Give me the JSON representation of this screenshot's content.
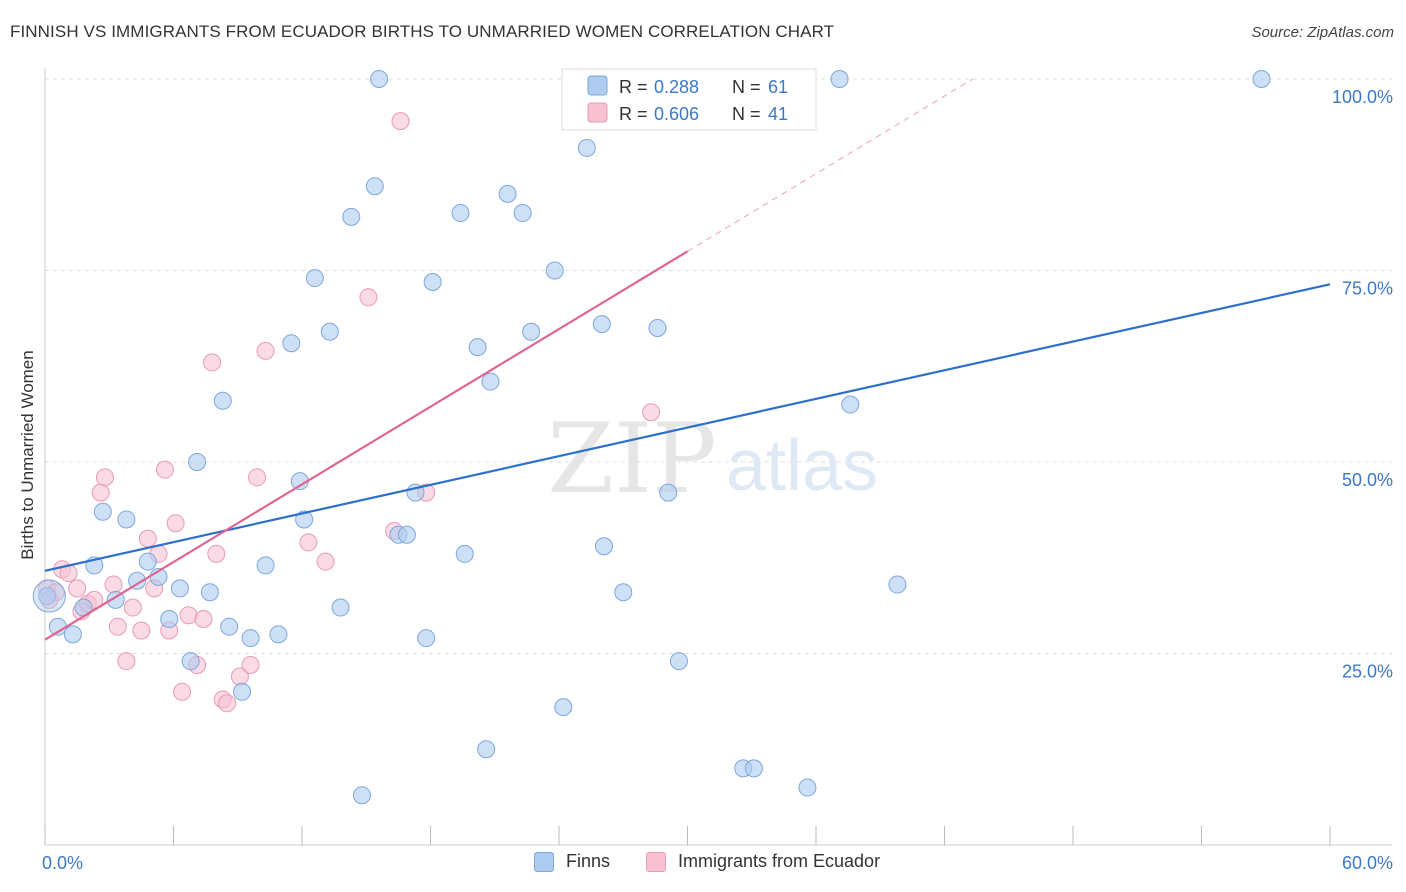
{
  "title": "FINNISH VS IMMIGRANTS FROM ECUADOR BIRTHS TO UNMARRIED WOMEN CORRELATION CHART",
  "source": "Source: ZipAtlas.com",
  "watermark": {
    "zip": "ZIP",
    "atlas": "atlas"
  },
  "colors": {
    "finns_fill": "#aecbf0",
    "finns_stroke": "#7ea6dd",
    "finns_line": "#2d6fcd",
    "ecuador_fill": "#f7c1d2",
    "ecuador_stroke": "#e99ab4",
    "ecuador_line": "#e0648f",
    "axis_label": "#3b78c8",
    "grid": "#dddddd"
  },
  "legend_top": {
    "finns": {
      "r_label": "R = ",
      "r_value": "0.288",
      "n_label": "N = ",
      "n_value": "61"
    },
    "ecuador": {
      "r_label": "R = ",
      "r_value": "0.606",
      "n_label": "N = ",
      "n_value": "41"
    }
  },
  "legend_bottom": {
    "finns": "Finns",
    "ecuador": "Immigrants from Ecuador"
  },
  "chart_data": {
    "type": "scatter",
    "title": "FINNISH VS IMMIGRANTS FROM ECUADOR BIRTHS TO UNMARRIED WOMEN CORRELATION CHART",
    "xlabel": "",
    "ylabel": "Births to Unmarried Women",
    "xlim": [
      0,
      60
    ],
    "ylim": [
      0,
      100
    ],
    "x_tick_labels": [
      "0.0%",
      "60.0%"
    ],
    "y_tick_labels": [
      "25.0%",
      "50.0%",
      "75.0%",
      "100.0%"
    ],
    "y_ticks": [
      25,
      50,
      75,
      100
    ],
    "grid": "horizontal dashed",
    "legend": "top-center",
    "series": [
      {
        "name": "Finns",
        "color": "#aecbf0",
        "points": [
          [
            0.1,
            32.5
          ],
          [
            0.6,
            28.5
          ],
          [
            1.3,
            27.5
          ],
          [
            1.8,
            31.0
          ],
          [
            2.3,
            36.5
          ],
          [
            2.7,
            43.5
          ],
          [
            3.3,
            32.0
          ],
          [
            3.8,
            42.5
          ],
          [
            4.3,
            34.5
          ],
          [
            4.8,
            37.0
          ],
          [
            5.3,
            35.0
          ],
          [
            5.8,
            29.5
          ],
          [
            6.3,
            33.5
          ],
          [
            6.8,
            24.0
          ],
          [
            7.1,
            50.0
          ],
          [
            7.7,
            33.0
          ],
          [
            8.3,
            58.0
          ],
          [
            8.6,
            28.5
          ],
          [
            9.2,
            20.0
          ],
          [
            9.6,
            27.0
          ],
          [
            10.3,
            36.5
          ],
          [
            10.9,
            27.5
          ],
          [
            11.5,
            65.5
          ],
          [
            11.9,
            47.5
          ],
          [
            12.1,
            42.5
          ],
          [
            12.6,
            74.0
          ],
          [
            13.3,
            67.0
          ],
          [
            13.8,
            31.0
          ],
          [
            14.3,
            82.0
          ],
          [
            14.8,
            6.5
          ],
          [
            15.4,
            86.0
          ],
          [
            15.6,
            100.0
          ],
          [
            16.5,
            40.5
          ],
          [
            16.9,
            40.5
          ],
          [
            17.3,
            46.0
          ],
          [
            17.8,
            27.0
          ],
          [
            18.1,
            73.5
          ],
          [
            19.4,
            82.5
          ],
          [
            19.6,
            38.0
          ],
          [
            20.2,
            65.0
          ],
          [
            20.6,
            12.5
          ],
          [
            20.8,
            60.5
          ],
          [
            21.6,
            85.0
          ],
          [
            22.3,
            82.5
          ],
          [
            22.7,
            67.0
          ],
          [
            23.8,
            75.0
          ],
          [
            24.2,
            18.0
          ],
          [
            25.3,
            91.0
          ],
          [
            26.0,
            68.0
          ],
          [
            26.1,
            39.0
          ],
          [
            27.0,
            33.0
          ],
          [
            28.6,
            67.5
          ],
          [
            29.1,
            46.0
          ],
          [
            29.6,
            24.0
          ],
          [
            32.6,
            10.0
          ],
          [
            33.1,
            10.0
          ],
          [
            35.6,
            7.5
          ],
          [
            37.1,
            100.0
          ],
          [
            37.6,
            57.5
          ],
          [
            39.8,
            34.0
          ],
          [
            56.8,
            100.0
          ]
        ]
      },
      {
        "name": "Immigrants from Ecuador",
        "color": "#f7c1d2",
        "points": [
          [
            0.1,
            33.5
          ],
          [
            0.5,
            33.0
          ],
          [
            0.8,
            36.0
          ],
          [
            1.1,
            35.5
          ],
          [
            1.5,
            33.5
          ],
          [
            1.7,
            30.5
          ],
          [
            2.0,
            31.5
          ],
          [
            2.3,
            32.0
          ],
          [
            2.6,
            46.0
          ],
          [
            2.8,
            48.0
          ],
          [
            3.2,
            34.0
          ],
          [
            3.4,
            28.5
          ],
          [
            3.8,
            24.0
          ],
          [
            4.1,
            31.0
          ],
          [
            4.5,
            28.0
          ],
          [
            4.8,
            40.0
          ],
          [
            5.1,
            33.5
          ],
          [
            5.3,
            38.0
          ],
          [
            5.6,
            49.0
          ],
          [
            5.8,
            28.0
          ],
          [
            6.1,
            42.0
          ],
          [
            6.4,
            20.0
          ],
          [
            6.7,
            30.0
          ],
          [
            7.1,
            23.5
          ],
          [
            7.4,
            29.5
          ],
          [
            7.8,
            63.0
          ],
          [
            8.0,
            38.0
          ],
          [
            8.3,
            19.0
          ],
          [
            8.5,
            18.5
          ],
          [
            9.1,
            22.0
          ],
          [
            9.6,
            23.5
          ],
          [
            9.9,
            48.0
          ],
          [
            10.3,
            64.5
          ],
          [
            12.3,
            39.5
          ],
          [
            13.1,
            37.0
          ],
          [
            15.1,
            71.5
          ],
          [
            16.3,
            41.0
          ],
          [
            16.6,
            94.5
          ],
          [
            17.8,
            46.0
          ],
          [
            28.3,
            56.5
          ],
          [
            0.2,
            32.0
          ]
        ]
      }
    ],
    "trend_lines": [
      {
        "name": "Finns",
        "color": "#2d6fcd",
        "x": [
          0,
          60
        ],
        "y": [
          35.8,
          73.2
        ]
      },
      {
        "name": "Immigrants from Ecuador",
        "color": "#e0648f",
        "x": [
          0,
          30
        ],
        "y": [
          26.8,
          77.5
        ],
        "dashed_extension_x": [
          30,
          60
        ],
        "dashed_extension_y": [
          77.5,
          128.2
        ]
      }
    ]
  }
}
